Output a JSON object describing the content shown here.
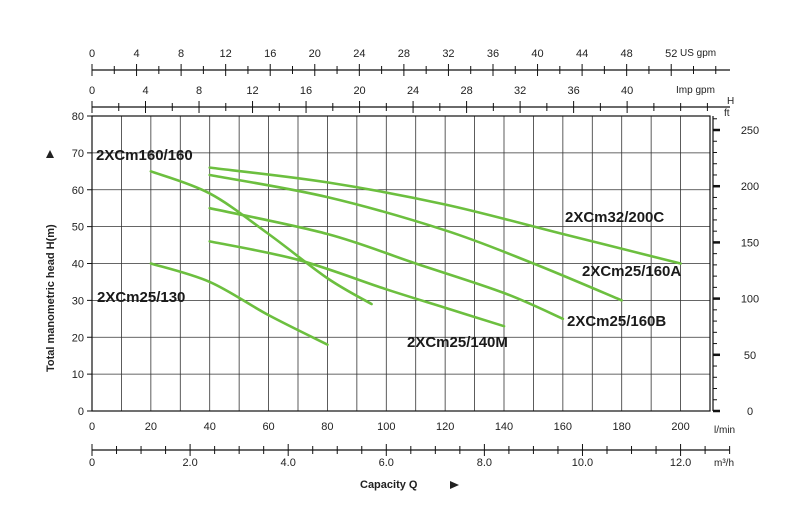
{
  "chart_data": {
    "type": "line",
    "title": "",
    "xlabel": "Capacity Q",
    "ylabel": "Total manometric head H(m)",
    "x_unit": "l/min",
    "x_range": [
      0,
      210
    ],
    "y_range": [
      0,
      80
    ],
    "x_ticks": [
      "0",
      "20",
      "40",
      "60",
      "80",
      "100",
      "120",
      "140",
      "160",
      "180",
      "200"
    ],
    "y_ticks": [
      "0",
      "10",
      "20",
      "30",
      "40",
      "50",
      "60",
      "70",
      "80"
    ],
    "right_axis": {
      "unit": "ft",
      "label": "H",
      "ticks": [
        "0",
        "50",
        "100",
        "150",
        "200",
        "250"
      ],
      "values": [
        0,
        50,
        100,
        150,
        200,
        250
      ]
    },
    "top_axis_us": {
      "unit": "US gpm",
      "ticks": [
        "0",
        "4",
        "8",
        "12",
        "16",
        "20",
        "24",
        "28",
        "32",
        "36",
        "40",
        "44",
        "48",
        "52"
      ],
      "values": [
        0,
        4,
        8,
        12,
        16,
        20,
        24,
        28,
        32,
        36,
        40,
        44,
        48,
        52
      ]
    },
    "top_axis_imp": {
      "unit": "Imp gpm",
      "ticks": [
        "0",
        "4",
        "8",
        "12",
        "16",
        "20",
        "24",
        "28",
        "32",
        "36",
        "40"
      ],
      "values": [
        0,
        4,
        8,
        12,
        16,
        20,
        24,
        28,
        32,
        36,
        40
      ]
    },
    "bottom_axis_m3h": {
      "unit": "m³/h",
      "ticks": [
        "0",
        "2.0",
        "4.0",
        "6.0",
        "8.0",
        "10.0",
        "12.0"
      ],
      "values": [
        0,
        2,
        4,
        6,
        8,
        10,
        12
      ]
    },
    "grid": true,
    "series": [
      {
        "name": "2XCm160/160",
        "points": [
          [
            20,
            65
          ],
          [
            40,
            59
          ],
          [
            60,
            48
          ],
          [
            80,
            36
          ],
          [
            95,
            29
          ]
        ]
      },
      {
        "name": "2XCm32/200C",
        "points": [
          [
            40,
            66
          ],
          [
            80,
            62
          ],
          [
            120,
            56
          ],
          [
            160,
            48
          ],
          [
            200,
            40
          ]
        ]
      },
      {
        "name": "2XCm25/160A",
        "points": [
          [
            40,
            64
          ],
          [
            80,
            58
          ],
          [
            120,
            49
          ],
          [
            150,
            40
          ],
          [
            180,
            30
          ]
        ]
      },
      {
        "name": "2XCm25/160B",
        "points": [
          [
            40,
            55
          ],
          [
            80,
            48
          ],
          [
            110,
            40
          ],
          [
            140,
            32
          ],
          [
            160,
            25
          ]
        ]
      },
      {
        "name": "2XCm25/140M",
        "points": [
          [
            40,
            46
          ],
          [
            70,
            41
          ],
          [
            100,
            33
          ],
          [
            120,
            28
          ],
          [
            140,
            23
          ]
        ]
      },
      {
        "name": "2XCm25/130",
        "points": [
          [
            20,
            40
          ],
          [
            40,
            35
          ],
          [
            60,
            26
          ],
          [
            80,
            18
          ]
        ]
      }
    ],
    "series_color": "#6cbf3f"
  }
}
